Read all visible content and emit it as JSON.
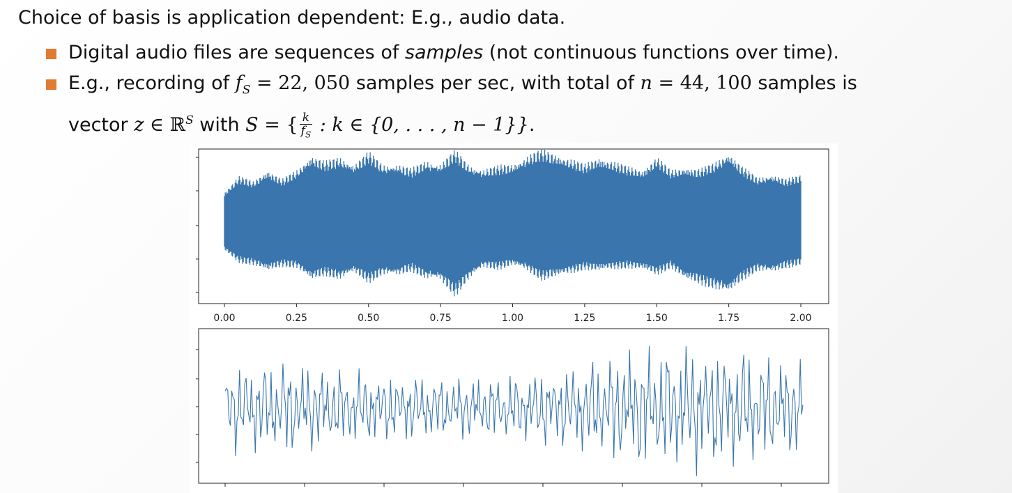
{
  "slide": {
    "headline": "Choice of basis is application dependent: E.g., audio data.",
    "bullets": [
      {
        "text_before": "Digital audio files are sequences of ",
        "emphasis": "samples",
        "text_after": " (not continuous functions over time)."
      },
      {
        "part1": "E.g., recording of ",
        "math_fs": "f",
        "math_fs_sub": "S",
        "math_eq1": " = 22, 050",
        "part2": " samples per sec, with total of ",
        "math_n": "n",
        "math_eq2": " = 44, 100",
        "part3": " samples is",
        "part4": "vector ",
        "math_z": "z",
        "math_in": " ∈ ℝ",
        "math_sup": "S",
        "part5": " with ",
        "math_S": "S",
        "math_set_open": " = {",
        "frac_num": "k",
        "frac_den": "f",
        "frac_den_sub": "S",
        "math_set_rest": " : k ∈ {0, . . . , n − 1}}",
        "period": "."
      }
    ],
    "colors": {
      "bullet_marker": "#e07b31",
      "waveform": "#3a76ad",
      "axis": "#222222"
    }
  },
  "chart_data": [
    {
      "type": "line",
      "title": "",
      "xlabel": "",
      "ylabel": "",
      "xlim": [
        0,
        2
      ],
      "x_ticks": [
        "0.00",
        "0.25",
        "0.50",
        "0.75",
        "1.00",
        "1.25",
        "1.50",
        "1.75",
        "2.00"
      ],
      "y_tick_labels_shown": false,
      "grid": false,
      "series": [
        {
          "name": "",
          "color": "#3a76ad",
          "envelope_x": [
            0.0,
            0.05,
            0.1,
            0.15,
            0.2,
            0.25,
            0.3,
            0.35,
            0.4,
            0.45,
            0.5,
            0.55,
            0.6,
            0.65,
            0.7,
            0.75,
            0.8,
            0.85,
            0.9,
            0.95,
            1.0,
            1.05,
            1.1,
            1.15,
            1.2,
            1.25,
            1.3,
            1.35,
            1.4,
            1.45,
            1.5,
            1.55,
            1.6,
            1.65,
            1.7,
            1.75,
            1.8,
            1.85,
            1.9,
            1.95,
            2.0
          ],
          "envelope_upper": [
            0.42,
            0.62,
            0.55,
            0.72,
            0.58,
            0.7,
            0.92,
            0.82,
            0.88,
            0.8,
            0.95,
            0.78,
            0.8,
            0.72,
            0.84,
            0.8,
            0.97,
            0.78,
            0.72,
            0.76,
            0.8,
            0.9,
            0.98,
            0.94,
            0.86,
            0.78,
            0.9,
            0.82,
            0.75,
            0.72,
            0.88,
            0.7,
            0.76,
            0.72,
            0.8,
            0.96,
            0.74,
            0.6,
            0.66,
            0.58,
            0.64
          ],
          "envelope_lower": [
            -0.4,
            -0.55,
            -0.58,
            -0.68,
            -0.6,
            -0.62,
            -0.8,
            -0.72,
            -0.78,
            -0.7,
            -0.82,
            -0.72,
            -0.74,
            -0.66,
            -0.78,
            -0.8,
            -1.0,
            -0.78,
            -0.62,
            -0.64,
            -0.6,
            -0.66,
            -0.78,
            -0.76,
            -0.7,
            -0.64,
            -0.68,
            -0.64,
            -0.62,
            -0.66,
            -0.72,
            -0.62,
            -0.8,
            -0.84,
            -0.9,
            -0.98,
            -0.78,
            -0.66,
            -0.7,
            -0.62,
            -0.58
          ]
        }
      ]
    },
    {
      "type": "line",
      "title": "",
      "xlabel": "",
      "ylabel": "",
      "x_ticks_shown": false,
      "y_tick_labels_shown": false,
      "grid": false,
      "series": [
        {
          "name": "",
          "color": "#3a76ad",
          "points": 441,
          "amplitude_profile_x": [
            0.0,
            0.1,
            0.2,
            0.3,
            0.4,
            0.5,
            0.6,
            0.7,
            0.8,
            0.9,
            1.0
          ],
          "amplitude_profile": [
            0.62,
            0.72,
            0.58,
            0.5,
            0.46,
            0.5,
            0.62,
            0.9,
            0.95,
            0.88,
            0.7
          ]
        }
      ]
    }
  ]
}
